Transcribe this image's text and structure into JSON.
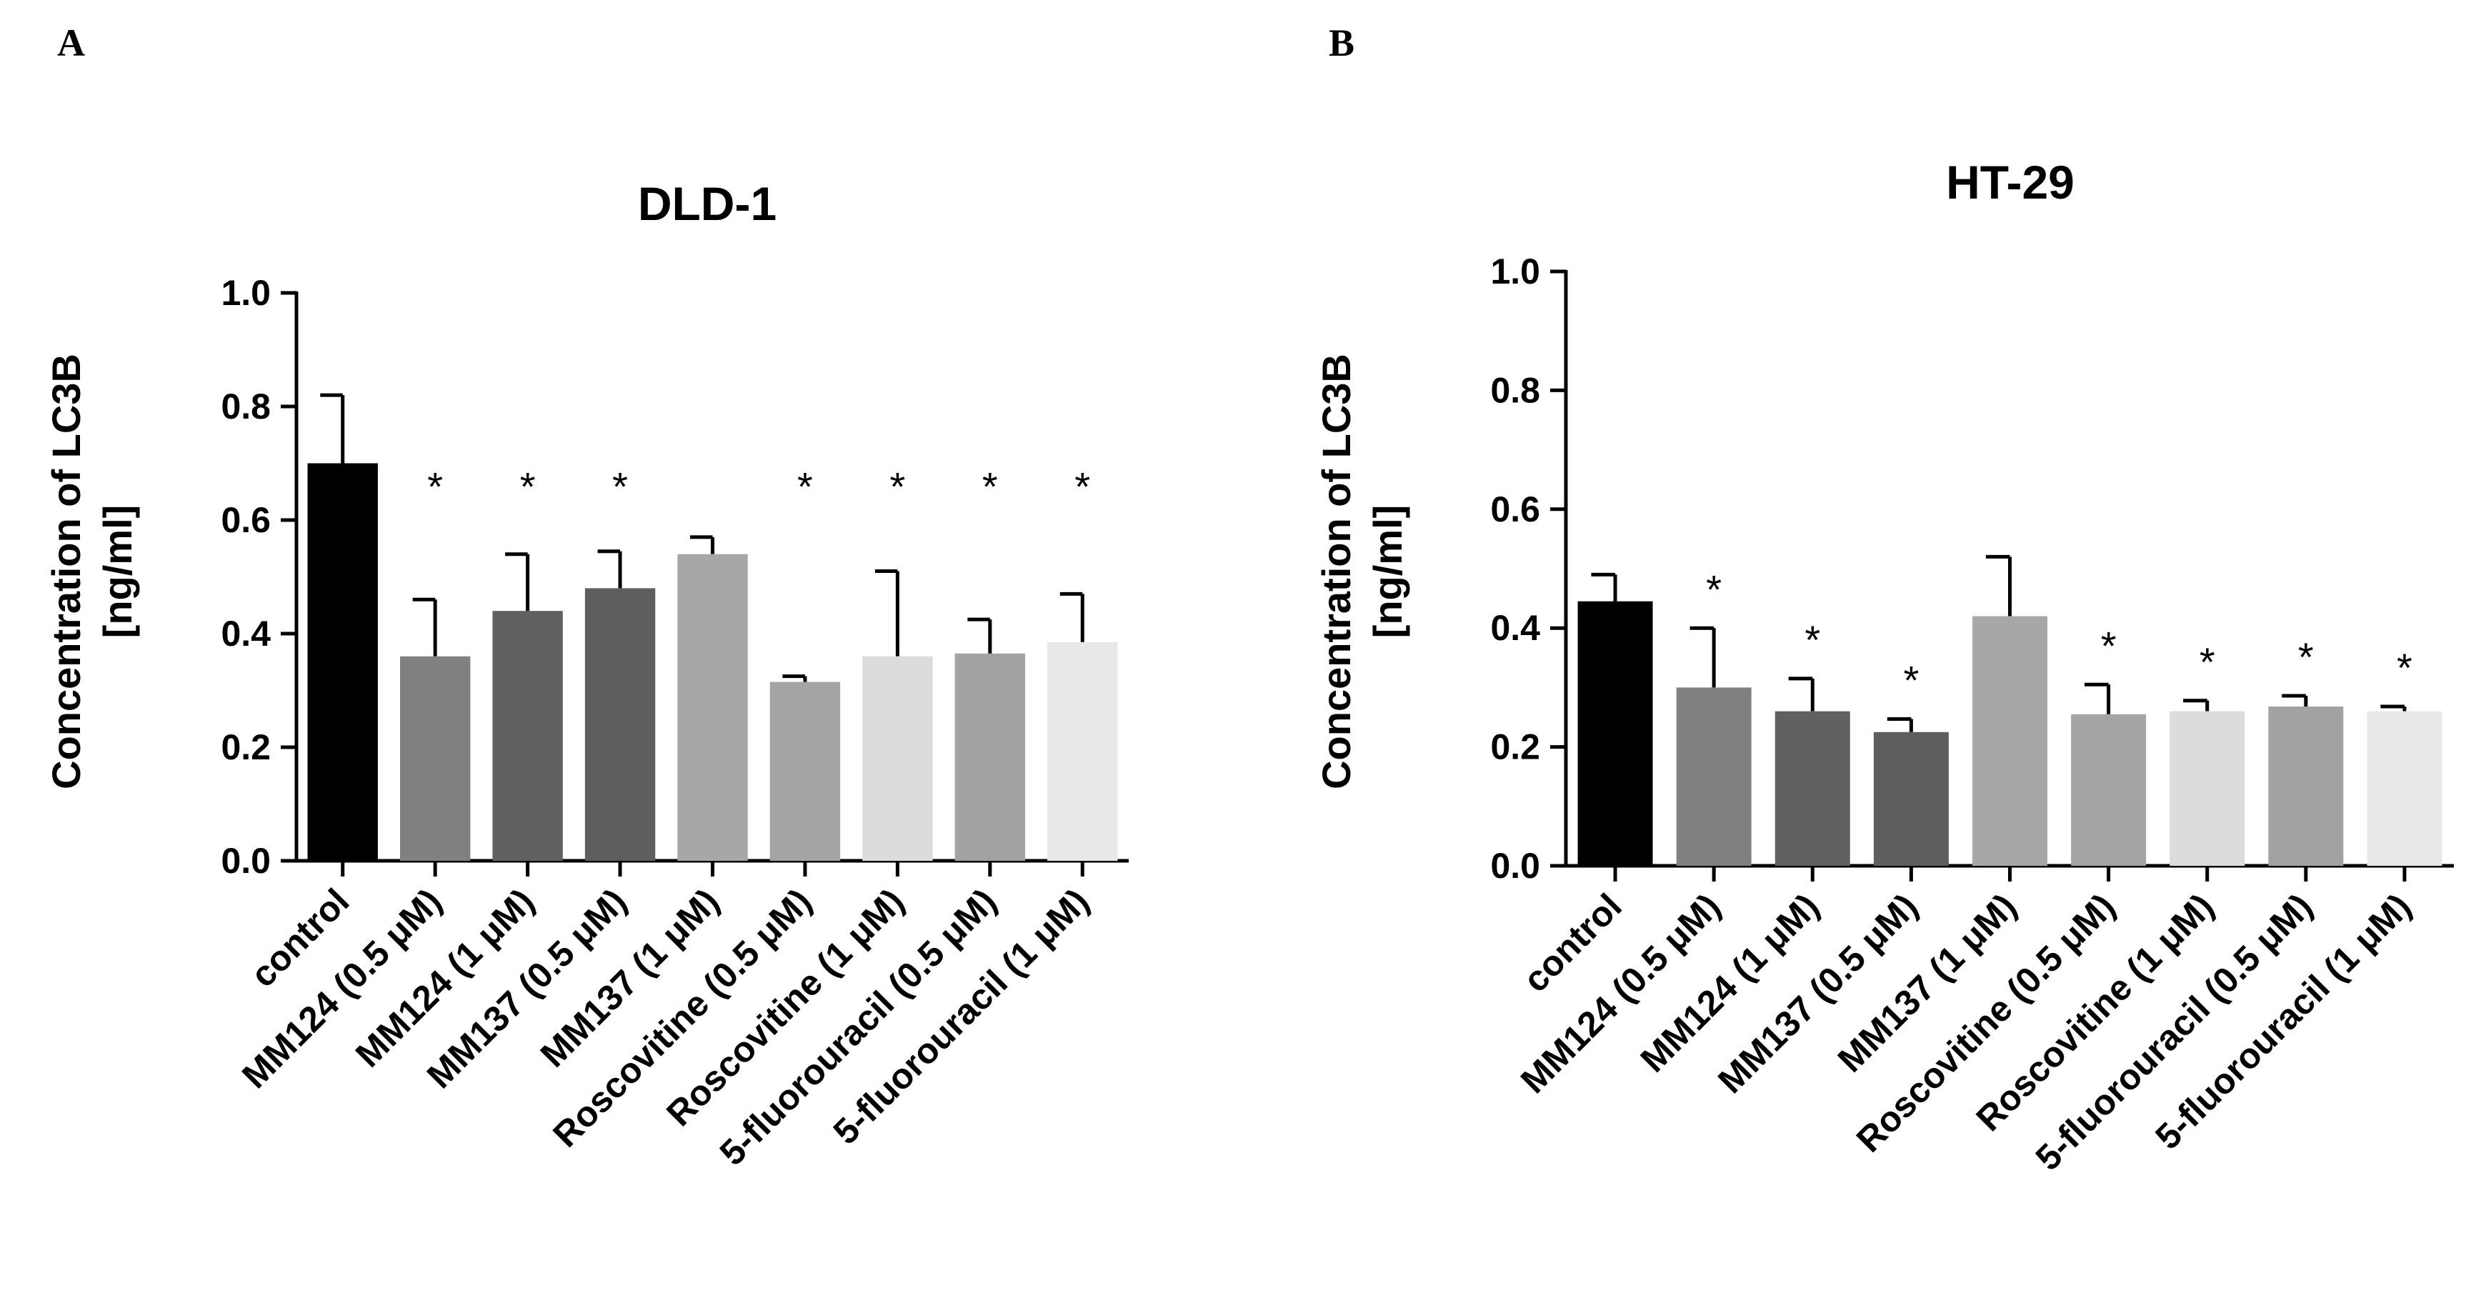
{
  "panels": {
    "a": "A",
    "b": "B"
  },
  "chart_data": [
    {
      "type": "bar",
      "title": "DLD-1",
      "ylabel_line1": "Concentration of LC3B",
      "ylabel_line2": "[ng/ml]",
      "xlabel": "",
      "ylim": [
        0,
        1.0
      ],
      "yticks": [
        "0.0",
        "0.2",
        "0.4",
        "0.6",
        "0.8",
        "1.0"
      ],
      "categories": [
        "control",
        "MM124 (0.5 μM)",
        "MM124 (1 μM)",
        "MM137 (0.5 μM)",
        "MM137 (1 μM)",
        "Roscovitine (0.5 μM)",
        "Roscovitine (1 μM)",
        "5-fluorouracil  (0.5 μM)",
        "5-fluorouracil  (1 μM)"
      ],
      "values": [
        0.7,
        0.36,
        0.44,
        0.48,
        0.54,
        0.315,
        0.36,
        0.365,
        0.385
      ],
      "errors": [
        0.12,
        0.1,
        0.1,
        0.065,
        0.03,
        0.01,
        0.15,
        0.06,
        0.085
      ],
      "colors": [
        "#000000",
        "#808080",
        "#606060",
        "#5e5e5e",
        "#a7a7a7",
        "#a4a4a4",
        "#dcdcdc",
        "#a2a2a2",
        "#e8e8e8"
      ],
      "significance": [
        "",
        "*",
        "*",
        "*",
        "",
        "*",
        "*",
        "*",
        "*"
      ]
    },
    {
      "type": "bar",
      "title": "HT-29",
      "ylabel_line1": "Concentration of LC3B",
      "ylabel_line2": "[ng/ml]",
      "xlabel": "",
      "ylim": [
        0,
        1.0
      ],
      "yticks": [
        "0.0",
        "0.2",
        "0.4",
        "0.6",
        "0.8",
        "1.0"
      ],
      "categories": [
        "control",
        "MM124 (0.5 μM)",
        "MM124 (1 μM)",
        "MM137 (0.5 μM)",
        "MM137 (1 μM)",
        "Roscovitine (0.5 μM)",
        "Roscovitine (1 μM)",
        "5-fluorouracil  (0.5 μM)",
        "5-fluorouracil  (1 μM)"
      ],
      "values": [
        0.445,
        0.3,
        0.26,
        0.225,
        0.42,
        0.255,
        0.26,
        0.268,
        0.26
      ],
      "errors": [
        0.045,
        0.1,
        0.055,
        0.022,
        0.1,
        0.05,
        0.018,
        0.018,
        0.008
      ],
      "colors": [
        "#000000",
        "#808080",
        "#606060",
        "#5e5e5e",
        "#a7a7a7",
        "#a4a4a4",
        "#dcdcdc",
        "#a2a2a2",
        "#e8e8e8"
      ],
      "significance": [
        "",
        "*",
        "*",
        "*",
        "",
        "*",
        "*",
        "*",
        "*"
      ]
    }
  ]
}
